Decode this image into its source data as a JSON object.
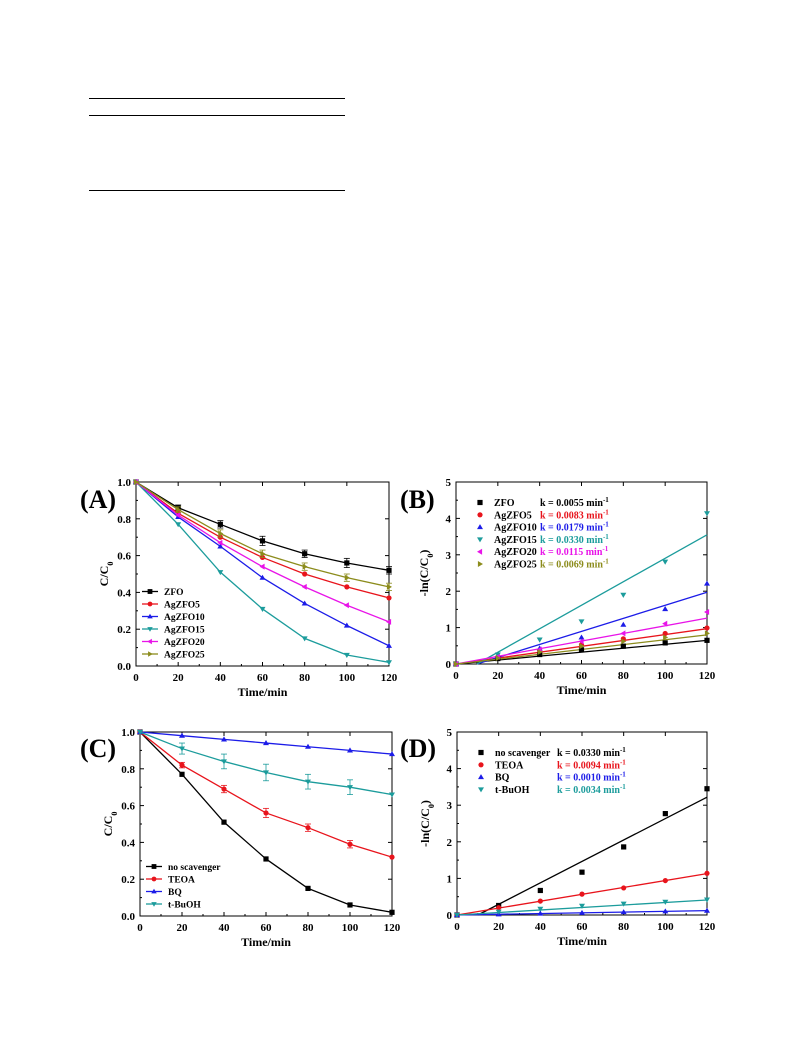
{
  "panels": [
    {
      "id": "A",
      "panel_label": "(A)",
      "xlabel": "Time/min",
      "ylabel": "C/C",
      "ylabel_sub": "0",
      "xlim": [
        0,
        120
      ],
      "ylim": [
        0,
        1.0
      ],
      "xticks": [
        0,
        20,
        40,
        60,
        80,
        100,
        120
      ],
      "yticks": [
        0.0,
        0.2,
        0.4,
        0.6,
        0.8,
        1.0
      ],
      "ytick_decimals": 1,
      "legend_position": "bottom-left"
    },
    {
      "id": "B",
      "panel_label": "(B)",
      "xlabel": "Time/min",
      "ylabel": "-ln(C/C",
      "ylabel_sub": "0",
      "ylabel_end": ")",
      "xlim": [
        0,
        120
      ],
      "ylim": [
        0,
        5
      ],
      "xticks": [
        0,
        20,
        40,
        60,
        80,
        100,
        120
      ],
      "yticks": [
        0,
        1,
        2,
        3,
        4,
        5
      ],
      "ytick_decimals": 0,
      "legend_position": "top-left"
    },
    {
      "id": "C",
      "panel_label": "(C)",
      "xlabel": "Time/min",
      "ylabel": "C/C",
      "ylabel_sub": "0",
      "xlim": [
        0,
        120
      ],
      "ylim": [
        0,
        1.0
      ],
      "xticks": [
        0,
        20,
        40,
        60,
        80,
        100,
        120
      ],
      "yticks": [
        0.0,
        0.2,
        0.4,
        0.6,
        0.8,
        1.0
      ],
      "ytick_decimals": 1,
      "legend_position": "bottom-left"
    },
    {
      "id": "D",
      "panel_label": "(D)",
      "xlabel": "Time/min",
      "ylabel": "-ln(C/C",
      "ylabel_sub": "0",
      "ylabel_end": ")",
      "xlim": [
        0,
        120
      ],
      "ylim": [
        0,
        5
      ],
      "xticks": [
        0,
        20,
        40,
        60,
        80,
        100,
        120
      ],
      "yticks": [
        0,
        1,
        2,
        3,
        4,
        5
      ],
      "ytick_decimals": 0,
      "legend_position": "top-left"
    }
  ],
  "chart_data": [
    {
      "panel": "A",
      "type": "line",
      "xlabel": "Time/min",
      "ylabel": "C/C0",
      "x": [
        0,
        20,
        40,
        60,
        80,
        100,
        120
      ],
      "series": [
        {
          "name": "ZFO",
          "color": "#000000",
          "marker": "square",
          "values": [
            1.0,
            0.86,
            0.77,
            0.68,
            0.61,
            0.56,
            0.52
          ],
          "err": [
            0,
            0.015,
            0.02,
            0.025,
            0.02,
            0.025,
            0.02
          ]
        },
        {
          "name": "AgZFO5",
          "color": "#e8141c",
          "marker": "circle",
          "values": [
            1.0,
            0.83,
            0.7,
            0.59,
            0.5,
            0.43,
            0.37
          ]
        },
        {
          "name": "AgZFO10",
          "color": "#1c1ce8",
          "marker": "triangle-up",
          "values": [
            1.0,
            0.81,
            0.65,
            0.48,
            0.34,
            0.22,
            0.11
          ]
        },
        {
          "name": "AgZFO15",
          "color": "#1c9c9c",
          "marker": "triangle-down",
          "values": [
            1.0,
            0.77,
            0.51,
            0.31,
            0.15,
            0.06,
            0.02
          ]
        },
        {
          "name": "AgZFO20",
          "color": "#e814e8",
          "marker": "triangle-left",
          "values": [
            1.0,
            0.82,
            0.67,
            0.54,
            0.43,
            0.33,
            0.24
          ]
        },
        {
          "name": "AgZFO25",
          "color": "#8c8c1c",
          "marker": "triangle-right",
          "values": [
            1.0,
            0.85,
            0.72,
            0.61,
            0.54,
            0.48,
            0.43
          ],
          "err": [
            0,
            0.015,
            0.02,
            0.02,
            0.02,
            0.02,
            0.02
          ]
        }
      ]
    },
    {
      "panel": "B",
      "type": "scatter",
      "xlabel": "Time/min",
      "ylabel": "-ln(C/C0)",
      "x": [
        0,
        20,
        40,
        60,
        80,
        100,
        120
      ],
      "series": [
        {
          "name": "ZFO",
          "k_text": "k = 0.0055 min",
          "k": 0.0055,
          "color": "#000000",
          "marker": "square",
          "values": [
            0,
            0.15,
            0.26,
            0.39,
            0.49,
            0.58,
            0.65
          ]
        },
        {
          "name": "AgZFO5",
          "k_text": "k = 0.0083 min",
          "k": 0.0083,
          "color": "#e8141c",
          "marker": "circle",
          "values": [
            0,
            0.19,
            0.36,
            0.53,
            0.69,
            0.84,
            0.99
          ]
        },
        {
          "name": "AgZFO10",
          "k_text": "k = 0.0179 min",
          "k": 0.0179,
          "color": "#1c1ce8",
          "marker": "triangle-up",
          "values": [
            0,
            0.21,
            0.43,
            0.73,
            1.08,
            1.51,
            2.21
          ]
        },
        {
          "name": "AgZFO15",
          "k_text": "k = 0.0330 min",
          "k": 0.033,
          "color": "#1c9c9c",
          "marker": "triangle-down",
          "values": [
            0,
            0.26,
            0.67,
            1.17,
            1.9,
            2.81,
            4.14
          ]
        },
        {
          "name": "AgZFO20",
          "k_text": "k = 0.0115 min",
          "k": 0.0115,
          "color": "#e814e8",
          "marker": "triangle-left",
          "values": [
            0,
            0.2,
            0.4,
            0.62,
            0.84,
            1.11,
            1.43
          ]
        },
        {
          "name": "AgZFO25",
          "k_text": "k = 0.0069 min",
          "k": 0.0069,
          "color": "#8c8c1c",
          "marker": "triangle-right",
          "values": [
            0,
            0.16,
            0.33,
            0.49,
            0.62,
            0.73,
            0.84
          ]
        }
      ],
      "fit_lines": [
        {
          "series": "ZFO",
          "from": [
            0,
            0.0
          ],
          "to": [
            120,
            0.65
          ]
        },
        {
          "series": "AgZFO5",
          "from": [
            0,
            0.0
          ],
          "to": [
            120,
            0.97
          ]
        },
        {
          "series": "AgZFO10",
          "from": [
            10,
            0.0
          ],
          "to": [
            120,
            1.97
          ]
        },
        {
          "series": "AgZFO15",
          "from": [
            10,
            0.0
          ],
          "to": [
            120,
            3.55
          ]
        },
        {
          "series": "AgZFO20",
          "from": [
            0,
            0.0
          ],
          "to": [
            120,
            1.26
          ]
        },
        {
          "series": "AgZFO25",
          "from": [
            0,
            0.0
          ],
          "to": [
            120,
            0.8
          ]
        }
      ],
      "k_unit_superscript": "-1"
    },
    {
      "panel": "C",
      "type": "line",
      "xlabel": "Time/min",
      "ylabel": "C/C0",
      "x": [
        0,
        20,
        40,
        60,
        80,
        100,
        120
      ],
      "series": [
        {
          "name": "no scavenger",
          "color": "#000000",
          "marker": "square",
          "values": [
            1.0,
            0.77,
            0.51,
            0.31,
            0.15,
            0.06,
            0.02
          ]
        },
        {
          "name": "TEOA",
          "color": "#e8141c",
          "marker": "circle",
          "values": [
            1.0,
            0.82,
            0.69,
            0.56,
            0.48,
            0.39,
            0.32
          ],
          "err": [
            0,
            0.015,
            0.02,
            0.025,
            0.02,
            0.02,
            0.0
          ]
        },
        {
          "name": "BQ",
          "color": "#1c1ce8",
          "marker": "triangle-up",
          "values": [
            1.0,
            0.98,
            0.96,
            0.94,
            0.92,
            0.9,
            0.88
          ]
        },
        {
          "name": "t-BuOH",
          "color": "#1c9c9c",
          "marker": "triangle-down",
          "values": [
            1.0,
            0.91,
            0.84,
            0.78,
            0.73,
            0.7,
            0.66
          ],
          "err": [
            0,
            0.03,
            0.04,
            0.045,
            0.04,
            0.04,
            0.0
          ]
        }
      ]
    },
    {
      "panel": "D",
      "type": "scatter",
      "xlabel": "Time/min",
      "ylabel": "-ln(C/C0)",
      "x": [
        0,
        20,
        40,
        60,
        80,
        100,
        120
      ],
      "series": [
        {
          "name": "no scavenger",
          "k_text": "k = 0.0330 min",
          "k": 0.033,
          "color": "#000000",
          "marker": "square",
          "values": [
            0,
            0.26,
            0.67,
            1.17,
            1.86,
            2.77,
            3.45
          ]
        },
        {
          "name": "TEOA",
          "k_text": "k = 0.0094 min",
          "k": 0.0094,
          "color": "#e8141c",
          "marker": "circle",
          "values": [
            0,
            0.2,
            0.38,
            0.57,
            0.74,
            0.94,
            1.14
          ]
        },
        {
          "name": "BQ",
          "k_text": "k = 0.0010 min",
          "k": 0.001,
          "color": "#1c1ce8",
          "marker": "triangle-up",
          "values": [
            0,
            0.02,
            0.04,
            0.06,
            0.08,
            0.1,
            0.12
          ]
        },
        {
          "name": "t-BuOH",
          "k_text": "k = 0.0034 min",
          "k": 0.0034,
          "color": "#1c9c9c",
          "marker": "triangle-down",
          "values": [
            0,
            0.09,
            0.17,
            0.25,
            0.31,
            0.36,
            0.42
          ]
        }
      ],
      "fit_lines": [
        {
          "series": "no scavenger",
          "from": [
            10,
            0.0
          ],
          "to": [
            120,
            3.22
          ]
        },
        {
          "series": "TEOA",
          "from": [
            0,
            0.0
          ],
          "to": [
            120,
            1.13
          ]
        },
        {
          "series": "BQ",
          "from": [
            0,
            0.0
          ],
          "to": [
            120,
            0.12
          ]
        },
        {
          "series": "t-BuOH",
          "from": [
            0,
            0.0
          ],
          "to": [
            120,
            0.41
          ]
        }
      ],
      "k_unit_superscript": "-1"
    }
  ]
}
